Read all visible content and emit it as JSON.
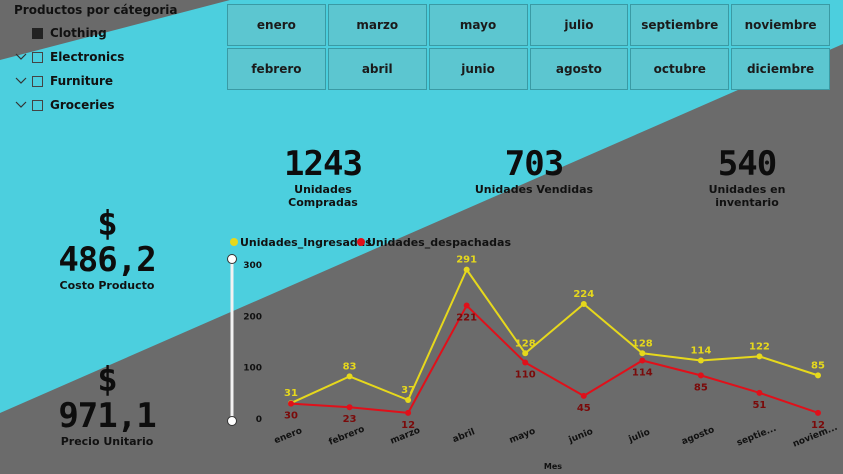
{
  "colors": {
    "cyan": "#4ccfde",
    "gray": "#6b6b6b",
    "yellow": "#e6d81c",
    "red": "#e0101a",
    "button": "#5cc6d0"
  },
  "slicer": {
    "title": "Productos por cátegoria",
    "items": [
      {
        "label": "Clothing",
        "checked": true,
        "expandable": false
      },
      {
        "label": "Electronics",
        "checked": false,
        "expandable": true
      },
      {
        "label": "Furniture",
        "checked": false,
        "expandable": true
      },
      {
        "label": "Groceries",
        "checked": false,
        "expandable": true
      }
    ]
  },
  "months": [
    "enero",
    "marzo",
    "mayo",
    "julio",
    "septiembre",
    "noviembre",
    "febrero",
    "abril",
    "junio",
    "agosto",
    "octubre",
    "diciembre"
  ],
  "kpis": {
    "compradas": {
      "value": "1243",
      "label": "Unidades Compradas"
    },
    "vendidas": {
      "value": "703",
      "label": "Unidades Vendidas"
    },
    "inventario": {
      "value": "540",
      "label": "Unidades en inventario"
    },
    "costo": {
      "value": "$ 486,2",
      "label": "Costo Producto"
    },
    "precio": {
      "value": "$ 971,1",
      "label": "Precio Unitario"
    }
  },
  "chart_data": {
    "type": "line",
    "categories": [
      "enero",
      "febrero",
      "marzo",
      "abril",
      "mayo",
      "junio",
      "julio",
      "agosto",
      "septie...",
      "noviem..."
    ],
    "series": [
      {
        "name": "Unidades_Ingresadas",
        "color": "#e6d81c",
        "values": [
          31,
          83,
          37,
          291,
          128,
          224,
          128,
          114,
          122,
          85
        ],
        "label_color": "#e6d81c"
      },
      {
        "name": "Unidades_despachadas",
        "color": "#e0101a",
        "values": [
          30,
          23,
          12,
          221,
          110,
          45,
          114,
          85,
          51,
          12
        ],
        "label_color": "#7a0a0a"
      }
    ],
    "y_ticks": [
      0,
      100,
      200,
      300
    ],
    "ylim": [
      0,
      300
    ],
    "xlabel": "Mes",
    "ylabel": "",
    "legend_position": "top-left"
  }
}
